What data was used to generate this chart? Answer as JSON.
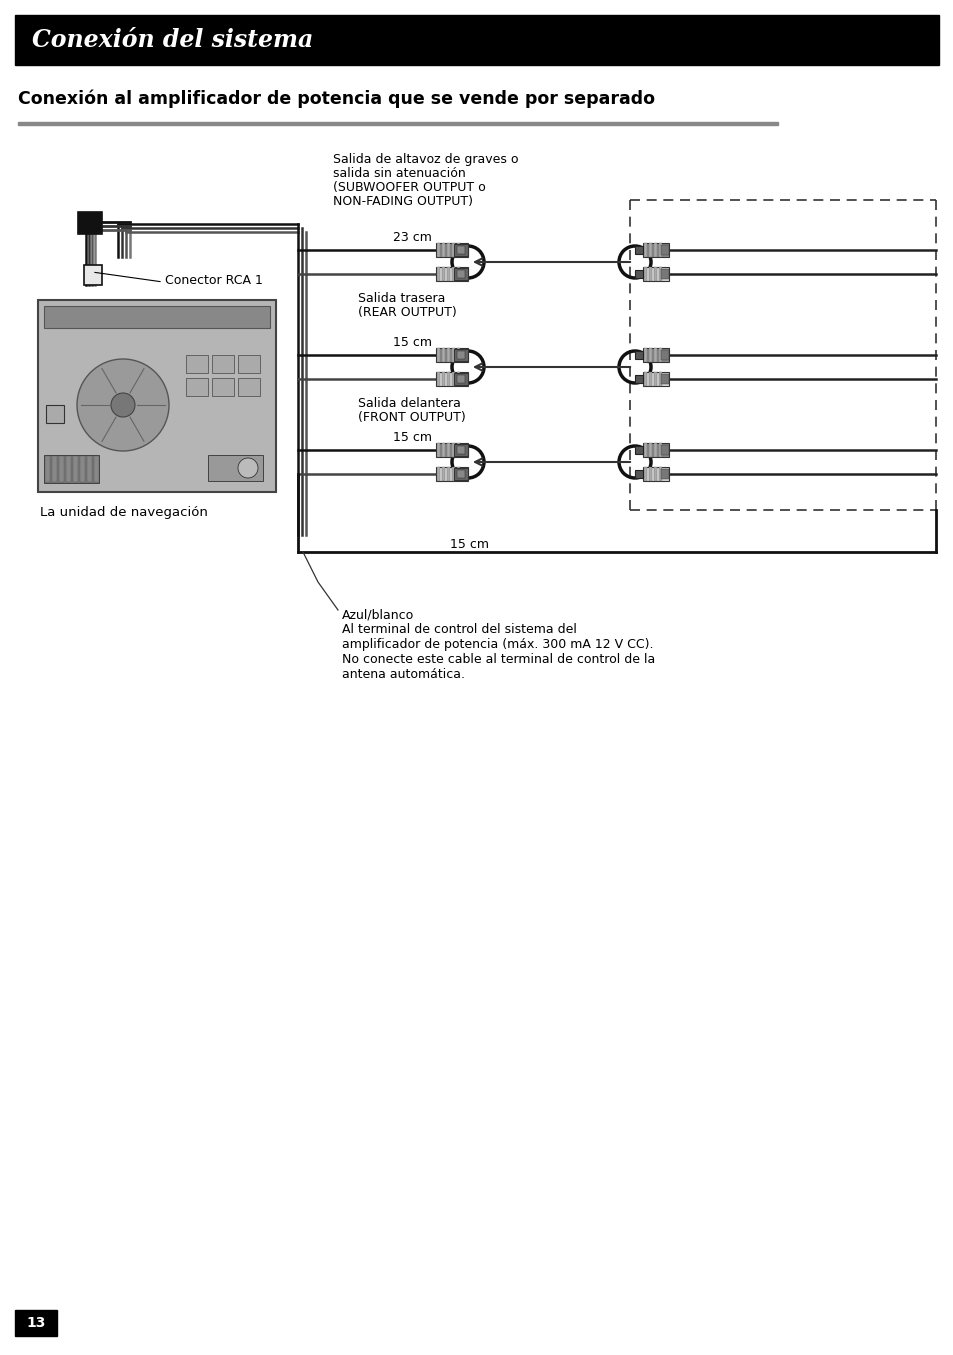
{
  "title_banner": "Conexión del sistema",
  "section_title": "Conexión al amplificador de potencia que se vende por separado",
  "bg_color": "#ffffff",
  "banner_bg": "#000000",
  "banner_text_color": "#ffffff",
  "label_conector": "Conector RCA 1",
  "label_unidad": "La unidad de navegación",
  "label_sub_l1": "Salida de altavoz de graves o",
  "label_sub_l2": "salida sin atenuación",
  "label_sub_l3": "(SUBWOOFER OUTPUT o",
  "label_sub_l4": "NON-FADING OUTPUT)",
  "label_rear_l1": "Salida trasera",
  "label_rear_l2": "(REAR OUTPUT)",
  "label_front_l1": "Salida delantera",
  "label_front_l2": "(FRONT OUTPUT)",
  "label_23cm": "23 cm",
  "label_15cm_a": "15 cm",
  "label_15cm_b": "15 cm",
  "label_15cm_c": "15 cm",
  "label_azul_l1": "Azul/blanco",
  "label_azul_l2": "Al terminal de control del sistema del",
  "label_azul_l3": "amplificador de potencia (máx. 300 mA 12 V CC).",
  "label_azul_l4": "No conecte este cable al terminal de control de la",
  "label_azul_l5": "antena automática.",
  "page_number": "13",
  "fig_w": 9.54,
  "fig_h": 13.55,
  "dpi": 100
}
